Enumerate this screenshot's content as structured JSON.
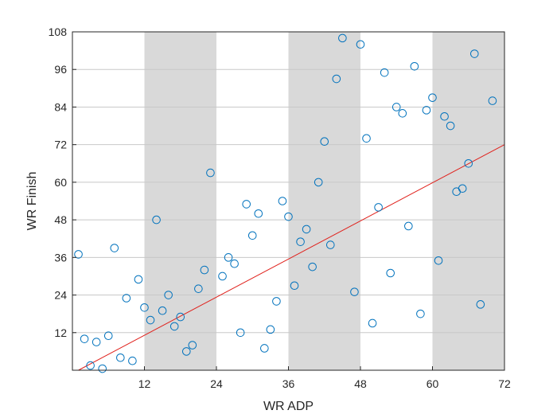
{
  "chart_data": {
    "type": "scatter",
    "title": "",
    "xlabel": "WR ADP",
    "ylabel": "WR Finish",
    "xlim": [
      0,
      72
    ],
    "ylim": [
      0,
      108
    ],
    "xticks": [
      12,
      24,
      36,
      48,
      60,
      72
    ],
    "yticks": [
      12,
      24,
      36,
      48,
      60,
      72,
      84,
      96,
      108
    ],
    "grid": true,
    "shaded_bands": [
      [
        12,
        24
      ],
      [
        36,
        48
      ],
      [
        60,
        72
      ]
    ],
    "colors": {
      "marker": "#0072BD",
      "trend_line": "#E0201B",
      "band": "#D9D9D9",
      "grid": "#C8C8C8",
      "axis": "#262626"
    },
    "points": [
      {
        "x": 1,
        "y": 37
      },
      {
        "x": 2,
        "y": 10
      },
      {
        "x": 3,
        "y": 1.5
      },
      {
        "x": 4,
        "y": 9
      },
      {
        "x": 5,
        "y": 0.5
      },
      {
        "x": 6,
        "y": 11
      },
      {
        "x": 7,
        "y": 39
      },
      {
        "x": 8,
        "y": 4
      },
      {
        "x": 9,
        "y": 23
      },
      {
        "x": 10,
        "y": 3
      },
      {
        "x": 11,
        "y": 29
      },
      {
        "x": 12,
        "y": 20
      },
      {
        "x": 13,
        "y": 16
      },
      {
        "x": 14,
        "y": 48
      },
      {
        "x": 15,
        "y": 19
      },
      {
        "x": 16,
        "y": 24
      },
      {
        "x": 17,
        "y": 14
      },
      {
        "x": 18,
        "y": 17
      },
      {
        "x": 19,
        "y": 6
      },
      {
        "x": 20,
        "y": 8
      },
      {
        "x": 21,
        "y": 26
      },
      {
        "x": 22,
        "y": 32
      },
      {
        "x": 23,
        "y": 63
      },
      {
        "x": 25,
        "y": 30
      },
      {
        "x": 26,
        "y": 36
      },
      {
        "x": 27,
        "y": 34
      },
      {
        "x": 28,
        "y": 12
      },
      {
        "x": 29,
        "y": 53
      },
      {
        "x": 30,
        "y": 43
      },
      {
        "x": 31,
        "y": 50
      },
      {
        "x": 32,
        "y": 7
      },
      {
        "x": 33,
        "y": 13
      },
      {
        "x": 34,
        "y": 22
      },
      {
        "x": 35,
        "y": 54
      },
      {
        "x": 36,
        "y": 49
      },
      {
        "x": 37,
        "y": 27
      },
      {
        "x": 38,
        "y": 41
      },
      {
        "x": 39,
        "y": 45
      },
      {
        "x": 40,
        "y": 33
      },
      {
        "x": 41,
        "y": 60
      },
      {
        "x": 42,
        "y": 73
      },
      {
        "x": 43,
        "y": 40
      },
      {
        "x": 44,
        "y": 93
      },
      {
        "x": 45,
        "y": 106
      },
      {
        "x": 47,
        "y": 25
      },
      {
        "x": 48,
        "y": 104
      },
      {
        "x": 49,
        "y": 74
      },
      {
        "x": 50,
        "y": 15
      },
      {
        "x": 51,
        "y": 52
      },
      {
        "x": 52,
        "y": 95
      },
      {
        "x": 53,
        "y": 31
      },
      {
        "x": 54,
        "y": 84
      },
      {
        "x": 55,
        "y": 82
      },
      {
        "x": 56,
        "y": 46
      },
      {
        "x": 57,
        "y": 97
      },
      {
        "x": 58,
        "y": 18
      },
      {
        "x": 59,
        "y": 83
      },
      {
        "x": 60,
        "y": 87
      },
      {
        "x": 61,
        "y": 35
      },
      {
        "x": 62,
        "y": 81
      },
      {
        "x": 63,
        "y": 78
      },
      {
        "x": 64,
        "y": 57
      },
      {
        "x": 65,
        "y": 58
      },
      {
        "x": 66,
        "y": 66
      },
      {
        "x": 67,
        "y": 101
      },
      {
        "x": 68,
        "y": 21
      },
      {
        "x": 70,
        "y": 86
      }
    ],
    "trend_line": {
      "x": [
        1,
        72
      ],
      "y": [
        0,
        72
      ]
    }
  }
}
